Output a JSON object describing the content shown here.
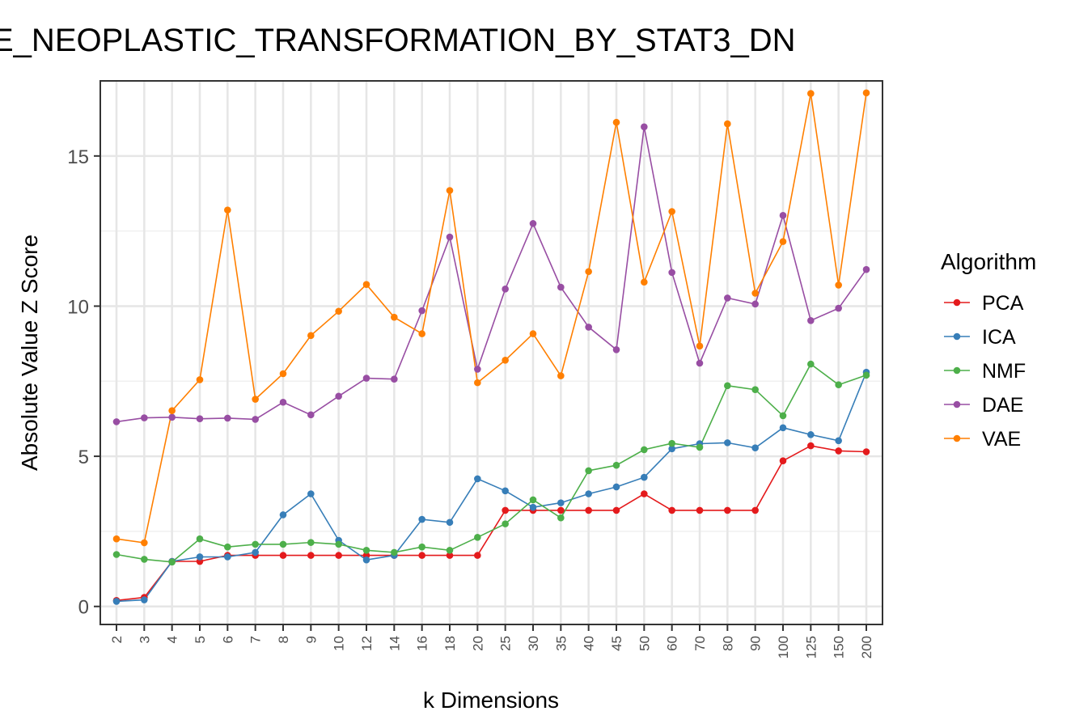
{
  "chart_data": {
    "type": "line",
    "title": "E_NEOPLASTIC_TRANSFORMATION_BY_STAT3_DN",
    "xlabel": "k Dimensions",
    "ylabel": "Absolute Value Z Score",
    "categories": [
      "2",
      "3",
      "4",
      "5",
      "6",
      "7",
      "8",
      "9",
      "10",
      "12",
      "14",
      "16",
      "18",
      "20",
      "25",
      "30",
      "35",
      "40",
      "45",
      "50",
      "60",
      "70",
      "80",
      "90",
      "100",
      "125",
      "150",
      "200"
    ],
    "ylim": [
      -0.6,
      17.5
    ],
    "yticks": [
      0,
      5,
      10,
      15
    ],
    "grid": true,
    "legend": {
      "title": "Algorithm",
      "placement": "right"
    },
    "series": [
      {
        "name": "PCA",
        "color": "#E41A1C",
        "values": [
          0.2,
          0.3,
          1.5,
          1.5,
          1.7,
          1.7,
          1.7,
          1.7,
          1.7,
          1.7,
          1.7,
          1.7,
          1.7,
          1.7,
          3.2,
          3.2,
          3.2,
          3.2,
          3.2,
          3.75,
          3.2,
          3.2,
          3.2,
          3.2,
          4.85,
          5.35,
          5.18,
          5.15
        ]
      },
      {
        "name": "ICA",
        "color": "#377EB8",
        "values": [
          0.17,
          0.22,
          1.5,
          1.65,
          1.65,
          1.8,
          3.05,
          3.75,
          2.2,
          1.55,
          1.7,
          2.9,
          2.8,
          4.25,
          3.85,
          3.3,
          3.45,
          3.75,
          3.98,
          4.3,
          5.25,
          5.42,
          5.45,
          5.28,
          5.95,
          5.72,
          5.52,
          7.8
        ]
      },
      {
        "name": "NMF",
        "color": "#4DAF4A",
        "values": [
          1.73,
          1.57,
          1.48,
          2.25,
          1.98,
          2.07,
          2.07,
          2.13,
          2.07,
          1.87,
          1.8,
          1.98,
          1.87,
          2.3,
          2.75,
          3.55,
          2.95,
          4.52,
          4.7,
          5.22,
          5.43,
          5.3,
          7.35,
          7.22,
          6.35,
          8.07,
          7.38,
          7.7
        ]
      },
      {
        "name": "DAE",
        "color": "#984EA3",
        "values": [
          6.15,
          6.28,
          6.3,
          6.25,
          6.27,
          6.23,
          6.8,
          6.38,
          7.0,
          7.6,
          7.57,
          9.85,
          12.3,
          7.9,
          10.57,
          12.75,
          10.63,
          9.3,
          8.55,
          15.97,
          11.12,
          8.1,
          10.27,
          10.07,
          13.02,
          9.52,
          9.93,
          11.22
        ]
      },
      {
        "name": "VAE",
        "color": "#FF7F00",
        "values": [
          2.25,
          2.12,
          6.52,
          7.55,
          13.2,
          6.9,
          7.75,
          9.02,
          9.83,
          10.72,
          9.63,
          9.08,
          13.85,
          7.45,
          8.2,
          9.08,
          7.68,
          11.15,
          16.12,
          10.8,
          13.15,
          8.67,
          16.07,
          10.43,
          12.15,
          17.08,
          10.7,
          17.1
        ]
      }
    ]
  }
}
